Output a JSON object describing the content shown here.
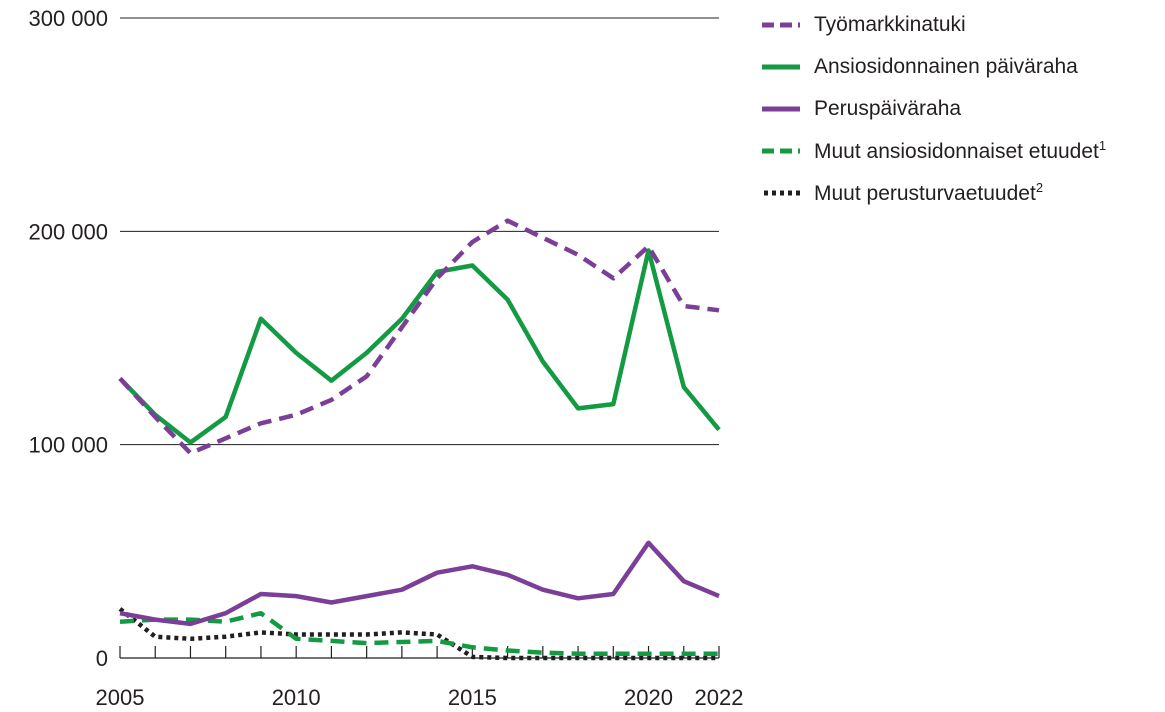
{
  "chart_data": {
    "type": "line",
    "x": [
      2005,
      2006,
      2007,
      2008,
      2009,
      2010,
      2011,
      2012,
      2013,
      2014,
      2015,
      2016,
      2017,
      2018,
      2019,
      2020,
      2021,
      2022
    ],
    "x_tick_labels": [
      "2005",
      "2010",
      "2015",
      "2020",
      "2022"
    ],
    "x_tick_values": [
      2005,
      2010,
      2015,
      2020,
      2022
    ],
    "y_tick_labels": [
      "0",
      "100 000",
      "200 000",
      "300 000"
    ],
    "y_tick_values": [
      0,
      100000,
      200000,
      300000
    ],
    "ylim": [
      0,
      300000
    ],
    "xlim": [
      2005,
      2022
    ],
    "grid": true,
    "legend_position": "top-right",
    "series": [
      {
        "name": "Työmarkkinatuki",
        "color": "#7b3f98",
        "style": "dashed",
        "values": [
          131000,
          113000,
          96000,
          103000,
          110000,
          114000,
          121000,
          132000,
          155000,
          178000,
          195000,
          205000,
          197000,
          189000,
          178000,
          193000,
          165000,
          163000
        ]
      },
      {
        "name": "Ansiosidonnainen päiväraha",
        "color": "#139a43",
        "style": "solid",
        "values": [
          131000,
          114000,
          101000,
          113000,
          159000,
          143000,
          130000,
          143000,
          159000,
          181000,
          184000,
          168000,
          139000,
          117000,
          119000,
          191000,
          127000,
          107000
        ]
      },
      {
        "name": "Peruspäiväraha",
        "color": "#7b3f98",
        "style": "solid",
        "values": [
          21000,
          18000,
          16000,
          21000,
          30000,
          29000,
          26000,
          29000,
          32000,
          40000,
          43000,
          39000,
          32000,
          28000,
          30000,
          54000,
          36000,
          29000
        ]
      },
      {
        "name": "Muut ansiosidonnaiset etuudet",
        "name_sup": "1",
        "color": "#139a43",
        "style": "dashed",
        "values": [
          17000,
          18000,
          18000,
          17000,
          21000,
          9000,
          8000,
          7000,
          7500,
          8000,
          5000,
          3500,
          2500,
          2000,
          2000,
          2000,
          2000,
          2000
        ]
      },
      {
        "name": "Muut perusturvaetuudet",
        "name_sup": "2",
        "color": "#231f20",
        "style": "dotted",
        "values": [
          23000,
          10000,
          9000,
          10000,
          12000,
          11000,
          11000,
          11000,
          12000,
          11000,
          500,
          0,
          0,
          0,
          0,
          0,
          0,
          0
        ]
      }
    ]
  }
}
